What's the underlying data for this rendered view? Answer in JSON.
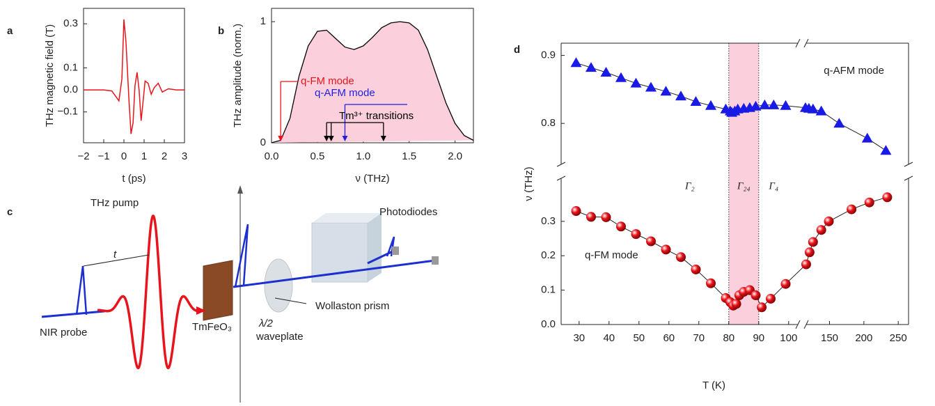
{
  "chart_data": [
    {
      "panel": "a",
      "type": "line",
      "xlabel": "t (ps)",
      "ylabel": "THz magnetic field (T)",
      "color": "#e8141b",
      "x": [
        -2,
        -1,
        -0.6,
        -0.4,
        -0.25,
        -0.1,
        0,
        0.1,
        0.25,
        0.35,
        0.45,
        0.55,
        0.65,
        0.75,
        0.85,
        0.95,
        1.05,
        1.2,
        1.35,
        1.5,
        1.7,
        1.9,
        2.2,
        2.6,
        3
      ],
      "values": [
        0,
        0,
        -0.005,
        -0.03,
        -0.05,
        0.05,
        0.32,
        0.22,
        -0.05,
        -0.2,
        -0.15,
        0.02,
        0.08,
        0,
        -0.14,
        -0.05,
        0.04,
        0.03,
        -0.02,
        0.01,
        0.03,
        -0.01,
        0.005,
        0,
        0
      ],
      "xlim": [
        -2,
        3
      ],
      "ylim": [
        -0.24,
        0.37
      ],
      "xticks": [
        {
          "value": -2,
          "label": "−2"
        },
        {
          "value": -1,
          "label": "−1"
        },
        0,
        1,
        2,
        3
      ],
      "yticks": [
        {
          "value": -0.1,
          "label": "−0.1"
        },
        {
          "value": 0,
          "label": "0.0"
        },
        0.1,
        0.3
      ]
    },
    {
      "panel": "b",
      "type": "area",
      "xlabel": "ν (THz)",
      "ylabel": "THz amplitude (norm.)",
      "color": "#fbd0dc",
      "line_color": "#000000",
      "x": [
        0,
        0.1,
        0.2,
        0.3,
        0.4,
        0.5,
        0.6,
        0.7,
        0.8,
        0.9,
        1.0,
        1.1,
        1.2,
        1.3,
        1.4,
        1.5,
        1.6,
        1.7,
        1.8,
        1.9,
        2.0,
        2.1,
        2.2
      ],
      "values": [
        0,
        0.02,
        0.2,
        0.55,
        0.8,
        0.92,
        0.93,
        0.86,
        0.79,
        0.77,
        0.8,
        0.87,
        0.95,
        0.99,
        1.0,
        0.99,
        0.93,
        0.77,
        0.55,
        0.33,
        0.16,
        0.06,
        0.02
      ],
      "xlim": [
        0,
        2.2
      ],
      "ylim": [
        0,
        1.11
      ],
      "xticks": [
        {
          "value": 0,
          "label": "0.0"
        },
        0.5,
        {
          "value": 1,
          "label": "1.0"
        },
        1.5,
        {
          "value": 2,
          "label": "2.0"
        }
      ],
      "yticks": [
        0,
        1
      ],
      "annotations": [
        {
          "text": "q-FM mode",
          "x": 0.1,
          "color": "#e8141b"
        },
        {
          "text": "q-AFM mode",
          "x": 0.8,
          "color": "#1f1fe0"
        },
        {
          "text": "Tm³⁺ transitions",
          "x": [
            0.6,
            0.65,
            1.22
          ],
          "color": "#000000"
        }
      ]
    },
    {
      "panel": "d",
      "type": "scatter",
      "xlabel": "T (K)",
      "ylabel": "ν (THz)",
      "xlim": [
        24,
        265
      ],
      "xbreak": [
        104,
        112
      ],
      "ylim": [
        0,
        0.918
      ],
      "ybreak": [
        0.405,
        0.75
      ],
      "xticks": [
        30,
        40,
        50,
        60,
        70,
        80,
        90,
        100,
        150,
        200,
        250
      ],
      "yticks": [
        {
          "value": 0,
          "label": "0.0"
        },
        0.1,
        0.2,
        0.3,
        0.8,
        0.9
      ],
      "shaded": {
        "x": [
          80,
          90
        ],
        "color": "#fbd0dc"
      },
      "phase_labels": [
        {
          "text": "Γ₂",
          "x": 67
        },
        {
          "text": "Γ₂₄",
          "x": 85
        },
        {
          "text": "Γ₄",
          "x": 95
        }
      ],
      "series": [
        {
          "name": "q-AFM mode",
          "color": "#1a1ae6",
          "marker": "triangle",
          "x": [
            29,
            34,
            39,
            44,
            49,
            54,
            59,
            64,
            69,
            74,
            79,
            80.5,
            81,
            82,
            83,
            85,
            87,
            89,
            92,
            95,
            99,
            115,
            120,
            126,
            138,
            164,
            205,
            232
          ],
          "values": [
            0.889,
            0.882,
            0.875,
            0.867,
            0.859,
            0.853,
            0.847,
            0.84,
            0.832,
            0.826,
            0.821,
            0.818,
            0.816,
            0.818,
            0.821,
            0.822,
            0.823,
            0.825,
            0.827,
            0.827,
            0.826,
            0.823,
            0.822,
            0.821,
            0.818,
            0.8,
            0.778,
            0.76
          ]
        },
        {
          "name": "q-FM mode",
          "color": "#e8141b",
          "marker": "circle",
          "x": [
            29,
            34,
            39,
            44,
            49,
            54,
            59,
            64,
            69,
            74,
            79,
            80.5,
            81.5,
            82.5,
            83.5,
            85,
            87,
            89,
            91,
            94,
            99,
            116,
            121,
            126,
            138,
            149,
            182,
            208,
            234
          ],
          "values": [
            0.33,
            0.313,
            0.312,
            0.285,
            0.263,
            0.242,
            0.218,
            0.196,
            0.16,
            0.12,
            0.077,
            0.065,
            0.055,
            0.06,
            0.085,
            0.095,
            0.1,
            0.085,
            0.05,
            0.075,
            0.118,
            0.175,
            0.21,
            0.24,
            0.275,
            0.3,
            0.335,
            0.355,
            0.37
          ]
        }
      ]
    }
  ],
  "diagram": {
    "panel": "c",
    "labels": {
      "pump": "THz pump",
      "delay": "t",
      "photodiodes": "Photodiodes",
      "probe": "NIR probe",
      "sample": "TmFeO₃",
      "halfwave": "λ/2",
      "waveplate": "waveplate",
      "prism": "Wollaston prism"
    }
  }
}
